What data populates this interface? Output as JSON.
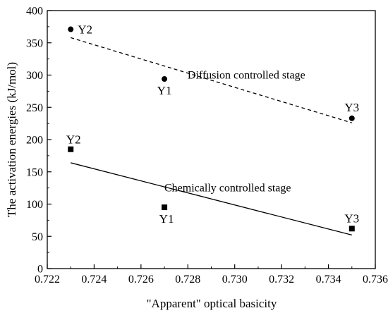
{
  "chart_data": {
    "type": "scatter",
    "title": "",
    "xlabel": "\"Apparent\" optical basicity",
    "ylabel": "The activation energies (kJ/mol)",
    "xlim": [
      0.722,
      0.736
    ],
    "ylim": [
      0,
      400
    ],
    "x_ticks": [
      "0.722",
      "0.724",
      "0.726",
      "0.728",
      "0.730",
      "0.732",
      "0.734",
      "0.736"
    ],
    "y_ticks": [
      "0",
      "50",
      "100",
      "150",
      "200",
      "250",
      "300",
      "350",
      "400"
    ],
    "grid": false,
    "legend": "none",
    "series": [
      {
        "name": "Diffusion controlled stage",
        "marker": "circle",
        "color": "#000000",
        "points": [
          {
            "label": "Y2",
            "x": 0.723,
            "y": 371
          },
          {
            "label": "Y1",
            "x": 0.727,
            "y": 294
          },
          {
            "label": "Y3",
            "x": 0.735,
            "y": 233
          }
        ],
        "trendline": {
          "style": "dashed",
          "x": [
            0.723,
            0.735
          ],
          "y": [
            358,
            226
          ]
        }
      },
      {
        "name": "Chemically controlled stage",
        "marker": "square",
        "color": "#000000",
        "points": [
          {
            "label": "Y2",
            "x": 0.723,
            "y": 185
          },
          {
            "label": "Y1",
            "x": 0.727,
            "y": 95
          },
          {
            "label": "Y3",
            "x": 0.735,
            "y": 62
          }
        ],
        "trendline": {
          "style": "solid",
          "x": [
            0.723,
            0.735
          ],
          "y": [
            164,
            52
          ]
        }
      }
    ]
  }
}
